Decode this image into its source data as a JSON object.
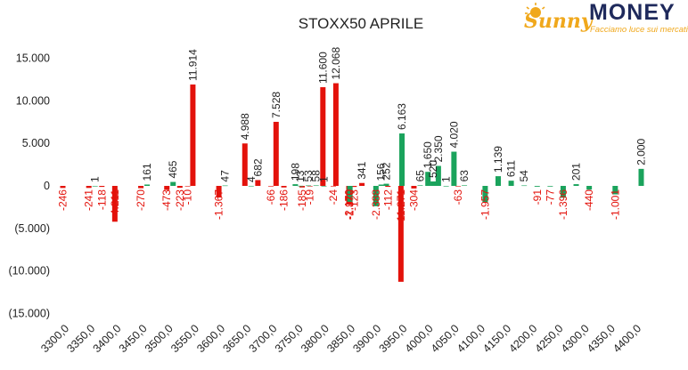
{
  "brand": {
    "script": "Sunny",
    "word": "MONEY",
    "tagline": "Facciamo luce sui mercati",
    "colors": {
      "navy": "#1f2a5c",
      "gold": "#f0a81c"
    }
  },
  "chart_data": {
    "type": "bar",
    "title": "STOXX50 APRILE",
    "ylim": [
      -15000,
      17500
    ],
    "yticks": [
      15000,
      10000,
      5000,
      0,
      -5000,
      -10000,
      -15000
    ],
    "ytick_labels": [
      "15.000",
      "10.000",
      "5.000",
      "0",
      "(5.000)",
      "(10.000)",
      "(15.000)"
    ],
    "xtick_labels": [
      "3300,0",
      "3350,0",
      "3400,0",
      "3450,0",
      "3500,0",
      "3550,0",
      "3600,0",
      "3650,0",
      "3700,0",
      "3750,0",
      "3800,0",
      "3850,0",
      "3900,0",
      "3950,0",
      "4000,0",
      "4050,0",
      "4100,0",
      "4150,0",
      "4200,0",
      "4250,0",
      "4300,0",
      "4350,0",
      "4400,0"
    ],
    "grid": false,
    "colors": {
      "puts": "#e3120b",
      "calls": "#1aa35c"
    },
    "series": [
      {
        "values": [
          {
            "strike": 3300,
            "value": -246,
            "label": "-246"
          },
          {
            "strike": 3350,
            "value": -241,
            "label": "-241"
          },
          {
            "strike": 3375,
            "value": -118,
            "label": "-118"
          },
          {
            "strike": 3400,
            "value": -4211,
            "label": "-4.211"
          },
          {
            "strike": 3450,
            "value": -270,
            "label": "-270"
          },
          {
            "strike": 3500,
            "value": -473,
            "label": "-473"
          },
          {
            "strike": 3525,
            "value": -223,
            "label": "-223"
          },
          {
            "strike": 3540,
            "value": -10,
            "label": "-10"
          },
          {
            "strike": 3550,
            "value": 11914,
            "label": "11.914"
          },
          {
            "strike": 3600,
            "value": -1367,
            "label": "-1.367"
          },
          {
            "strike": 3650,
            "value": 4988,
            "label": "4.988"
          },
          {
            "strike": 3675,
            "value": 682,
            "label": "682"
          },
          {
            "strike": 3700,
            "value": -66,
            "label": "-66"
          },
          {
            "strike": 3710,
            "value": 7528,
            "label": "7.528"
          },
          {
            "strike": 3725,
            "value": -186,
            "label": "-186"
          },
          {
            "strike": 3760,
            "value": -185,
            "label": "-185"
          },
          {
            "strike": 3775,
            "value": -19,
            "label": "-19"
          },
          {
            "strike": 3800,
            "value": 11600,
            "label": "11.600"
          },
          {
            "strike": 3820,
            "value": -24,
            "label": "-24"
          },
          {
            "strike": 3825,
            "value": 12068,
            "label": "12.068"
          },
          {
            "strike": 3850,
            "value": -2170,
            "label": "-2.170"
          },
          {
            "strike": 3860,
            "value": -123,
            "label": "-123"
          },
          {
            "strike": 3875,
            "value": 341,
            "label": "341"
          },
          {
            "strike": 3925,
            "value": -112,
            "label": "-112"
          },
          {
            "strike": 3950,
            "value": -11271,
            "label": "-11.271"
          },
          {
            "strike": 3975,
            "value": -304,
            "label": "-304"
          },
          {
            "strike": 4060,
            "value": -63,
            "label": "-63"
          }
        ]
      },
      {
        "values": [
          {
            "strike": 3350,
            "value": 1,
            "label": "1"
          },
          {
            "strike": 3450,
            "value": 161,
            "label": "161"
          },
          {
            "strike": 3500,
            "value": 465,
            "label": "465"
          },
          {
            "strike": 3600,
            "value": 47,
            "label": "47"
          },
          {
            "strike": 3650,
            "value": 4,
            "label": "4"
          },
          {
            "strike": 3735,
            "value": 198,
            "label": "198"
          },
          {
            "strike": 3745,
            "value": 13,
            "label": "13"
          },
          {
            "strike": 3760,
            "value": 53,
            "label": "53"
          },
          {
            "strike": 3775,
            "value": 58,
            "label": "58"
          },
          {
            "strike": 3790,
            "value": 1,
            "label": "1"
          },
          {
            "strike": 3840,
            "value": -1870,
            "label": "-1.870"
          },
          {
            "strike": 3890,
            "value": -2388,
            "label": "-2.388"
          },
          {
            "strike": 3900,
            "value": 156,
            "label": "156"
          },
          {
            "strike": 3910,
            "value": 252,
            "label": "252"
          },
          {
            "strike": 3940,
            "value": 6163,
            "label": "6.163"
          },
          {
            "strike": 3975,
            "value": 65,
            "label": "65"
          },
          {
            "strike": 3990,
            "value": 1650,
            "label": "1.650"
          },
          {
            "strike": 4000,
            "value": 520,
            "label": "520"
          },
          {
            "strike": 4010,
            "value": 2350,
            "label": "2.350"
          },
          {
            "strike": 4025,
            "value": 1,
            "label": "1"
          },
          {
            "strike": 4040,
            "value": 4020,
            "label": "4.020"
          },
          {
            "strike": 4060,
            "value": 63,
            "label": "63"
          },
          {
            "strike": 4100,
            "value": -1957,
            "label": "-1.957"
          },
          {
            "strike": 4125,
            "value": 1139,
            "label": "1.139"
          },
          {
            "strike": 4150,
            "value": 611,
            "label": "611"
          },
          {
            "strike": 4175,
            "value": 54,
            "label": "54"
          },
          {
            "strike": 4200,
            "value": -91,
            "label": "-91"
          },
          {
            "strike": 4225,
            "value": -77,
            "label": "-77"
          },
          {
            "strike": 4250,
            "value": -1396,
            "label": "-1.396"
          },
          {
            "strike": 4275,
            "value": 201,
            "label": "201"
          },
          {
            "strike": 4300,
            "value": -440,
            "label": "-440"
          },
          {
            "strike": 4350,
            "value": -1001,
            "label": "-1.001"
          },
          {
            "strike": 4400,
            "value": 2000,
            "label": "2.000"
          }
        ]
      }
    ]
  }
}
